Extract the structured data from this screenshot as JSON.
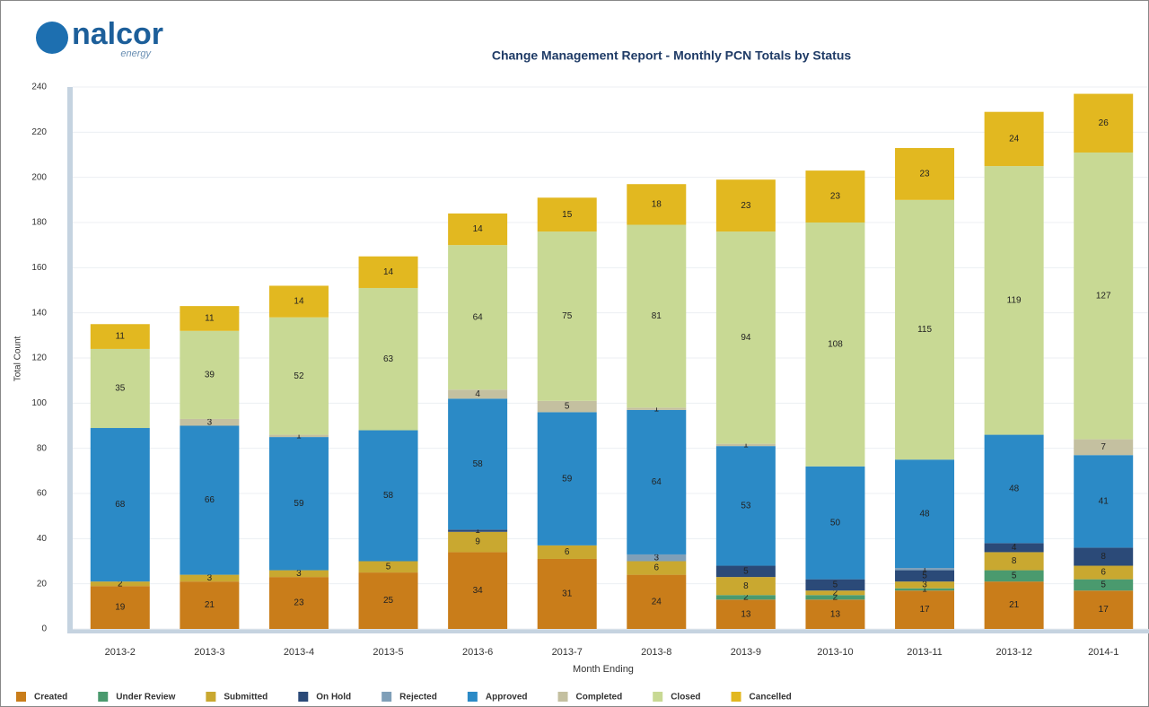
{
  "logo": {
    "name": "nalcor",
    "tagline": "energy"
  },
  "chart_data": {
    "type": "bar",
    "stacked": true,
    "title": "Change Management Report - Monthly PCN Totals by Status",
    "x_label": "Month Ending",
    "y_label": "Total Count",
    "categories": [
      "2013-2",
      "2013-3",
      "2013-4",
      "2013-5",
      "2013-6",
      "2013-7",
      "2013-8",
      "2013-9",
      "2013-10",
      "2013-11",
      "2013-12",
      "2014-1"
    ],
    "ylim": [
      0,
      240
    ],
    "yticks": [
      0,
      20,
      40,
      60,
      80,
      100,
      120,
      140,
      160,
      180,
      200,
      220,
      240
    ],
    "grid": true,
    "series": [
      {
        "name": "Created",
        "color": "#c97d1a",
        "values": [
          19,
          21,
          23,
          25,
          34,
          31,
          24,
          13,
          13,
          17,
          21,
          17
        ]
      },
      {
        "name": "Under Review",
        "color": "#4a9a6e",
        "values": [
          0,
          0,
          0,
          0,
          0,
          0,
          0,
          2,
          2,
          1,
          5,
          5
        ]
      },
      {
        "name": "Submitted",
        "color": "#c9a830",
        "values": [
          2,
          3,
          3,
          5,
          9,
          6,
          6,
          8,
          2,
          3,
          8,
          6
        ]
      },
      {
        "name": "On Hold",
        "color": "#2b4a78",
        "values": [
          0,
          0,
          0,
          0,
          1,
          0,
          0,
          5,
          5,
          5,
          4,
          8
        ]
      },
      {
        "name": "Rejected",
        "color": "#7f9fb8",
        "values": [
          0,
          0,
          0,
          0,
          0,
          0,
          3,
          0,
          0,
          1,
          0,
          0
        ]
      },
      {
        "name": "Approved",
        "color": "#2b8ac6",
        "values": [
          68,
          66,
          59,
          58,
          58,
          59,
          64,
          53,
          50,
          48,
          48,
          41
        ]
      },
      {
        "name": "Completed",
        "color": "#c4c0a0",
        "values": [
          0,
          3,
          1,
          0,
          4,
          5,
          1,
          1,
          0,
          0,
          0,
          7
        ]
      },
      {
        "name": "Closed",
        "color": "#c8d994",
        "values": [
          35,
          39,
          52,
          63,
          64,
          75,
          81,
          94,
          108,
          115,
          119,
          127
        ]
      },
      {
        "name": "Cancelled",
        "color": "#e2b820",
        "values": [
          11,
          11,
          14,
          14,
          14,
          15,
          18,
          23,
          23,
          23,
          24,
          26
        ]
      }
    ]
  }
}
